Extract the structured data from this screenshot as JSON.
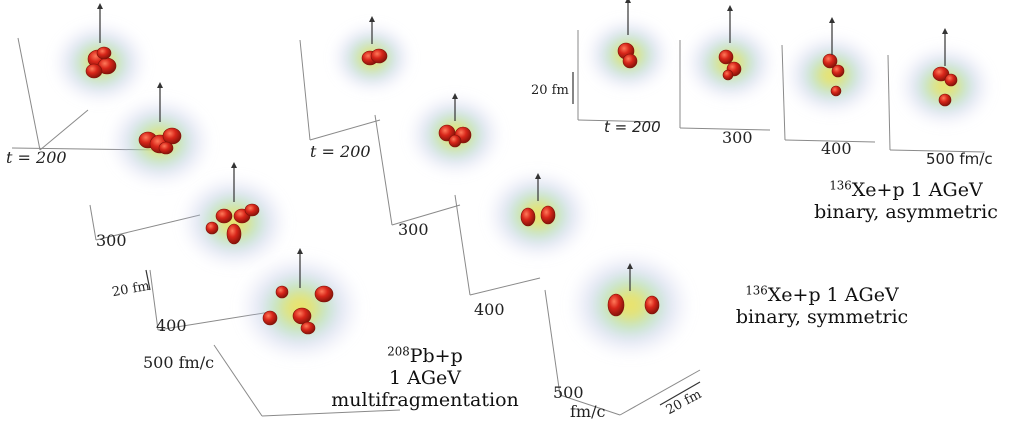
{
  "panel_left": {
    "time_labels": [
      "t = 200",
      "300",
      "400",
      "500 fm/c"
    ],
    "scale_label": "20 fm",
    "caption": {
      "line1_mass": "208",
      "line1_rest": "Pb+p",
      "line2": "1 AGeV",
      "line3": "multifragmentation"
    }
  },
  "panel_middle": {
    "time_labels": [
      "t = 200",
      "300",
      "400",
      "500",
      "fm/c"
    ],
    "scale_label": "20 fm",
    "caption": {
      "line1_mass": "136",
      "line1_rest": "Xe+p 1 AGeV",
      "line2": "binary, symmetric"
    }
  },
  "panel_right": {
    "time_labels": [
      "t = 200",
      "300",
      "400",
      "500 fm/c"
    ],
    "scale_label": "20 fm",
    "caption": {
      "line1_mass": "136",
      "line1_rest": "Xe+p 1 AGeV",
      "line2": "binary, asymmetric"
    }
  },
  "colors": {
    "fragment": "#d8261a",
    "fragment_dark": "#8e140c",
    "halo_yellow": "#e8d84a",
    "halo_green": "#9bd3a0",
    "halo_blue": "#aeb7e2",
    "axis": "#888888"
  }
}
